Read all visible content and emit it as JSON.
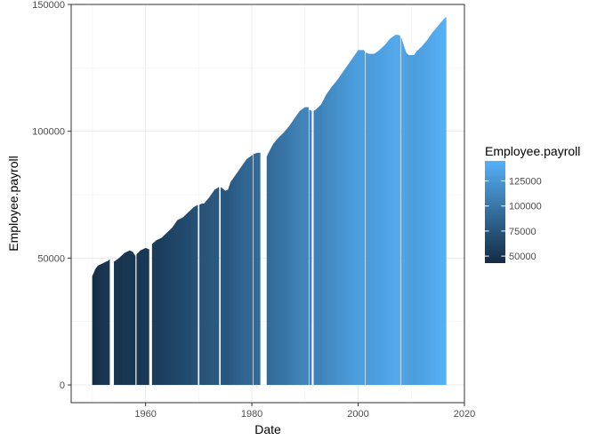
{
  "chart_data": {
    "type": "bar",
    "xlabel": "Date",
    "ylabel": "Employee.payroll",
    "xlim": [
      1946,
      2020
    ],
    "ylim": [
      -7000,
      150000
    ],
    "x_ticks": [
      1960,
      1980,
      2000,
      2020
    ],
    "x_tick_labels": [
      "1960",
      "1980",
      "2000",
      "2020"
    ],
    "y_ticks": [
      0,
      50000,
      100000,
      150000
    ],
    "y_tick_labels": [
      "0",
      "50000",
      "100000",
      "150000"
    ],
    "grid": true,
    "legend": {
      "title": "Employee.payroll",
      "placement": "right",
      "min": 43000,
      "max": 145000,
      "breaks": [
        50000,
        75000,
        100000,
        125000
      ],
      "break_labels": [
        "50000",
        "75000",
        "100000",
        "125000"
      ],
      "color_low": "#132b43",
      "color_high": "#56b1f7"
    },
    "gaps": [
      [
        1953.2,
        1954.0
      ],
      [
        1958.0,
        1958.3
      ],
      [
        1960.6,
        1961.2
      ],
      [
        1969.8,
        1970.1
      ],
      [
        1973.8,
        1974.1
      ],
      [
        1980.1,
        1980.3
      ],
      [
        1981.5,
        1982.8
      ],
      [
        1990.6,
        1990.8
      ],
      [
        1991.2,
        1991.6
      ],
      [
        2001.2,
        2001.4
      ],
      [
        2007.9,
        2008.0
      ]
    ],
    "series": [
      {
        "x": [
          1950.0,
          1950.5,
          1951.0,
          1952.0,
          1953.0,
          1953.2,
          1954.0,
          1955.0,
          1956.0,
          1957.0,
          1957.5,
          1958.0,
          1958.3,
          1959.0,
          1960.0,
          1960.5,
          1960.9,
          1961.2,
          1962.0,
          1963.0,
          1964.0,
          1965.0,
          1966.0,
          1967.0,
          1968.0,
          1969.0,
          1969.8,
          1970.1,
          1970.6,
          1971.0,
          1972.0,
          1973.0,
          1973.8,
          1974.1,
          1975.0,
          1975.5,
          1976.0,
          1977.0,
          1978.0,
          1979.0,
          1980.0,
          1980.3,
          1981.0,
          1981.5,
          1982.8,
          1983.0,
          1984.0,
          1985.0,
          1986.0,
          1987.0,
          1988.0,
          1989.0,
          1990.0,
          1990.6,
          1990.8,
          1991.2,
          1991.6,
          1992.0,
          1993.0,
          1994.0,
          1995.0,
          1996.0,
          1997.0,
          1998.0,
          1999.0,
          2000.0,
          2001.0,
          2001.4,
          2002.0,
          2003.0,
          2004.0,
          2005.0,
          2006.0,
          2007.0,
          2007.5,
          2008.0,
          2008.5,
          2009.0,
          2009.5,
          2010.0,
          2010.5,
          2011.0,
          2012.0,
          2013.0,
          2014.0,
          2015.0,
          2016.0,
          2016.5
        ],
        "values": [
          43000,
          45500,
          47000,
          48000,
          49000,
          49500,
          48500,
          50000,
          52000,
          53000,
          52500,
          51000,
          51500,
          53000,
          54000,
          53500,
          53500,
          55500,
          57000,
          58000,
          60000,
          62000,
          65000,
          66000,
          68000,
          70000,
          71000,
          71000,
          71500,
          71500,
          74000,
          77000,
          78000,
          78000,
          76500,
          77000,
          80000,
          83000,
          86000,
          89000,
          90500,
          91000,
          91500,
          91500,
          90000,
          91000,
          95000,
          97500,
          99500,
          102000,
          105000,
          108000,
          109500,
          109500,
          108500,
          108000,
          108000,
          108500,
          110500,
          114500,
          117500,
          120000,
          123000,
          126000,
          129000,
          132000,
          132000,
          131000,
          130500,
          130500,
          132000,
          134000,
          136500,
          138000,
          138000,
          137500,
          134000,
          131000,
          130000,
          130000,
          130000,
          131500,
          133500,
          136000,
          139000,
          141500,
          144000,
          145000
        ]
      }
    ]
  }
}
